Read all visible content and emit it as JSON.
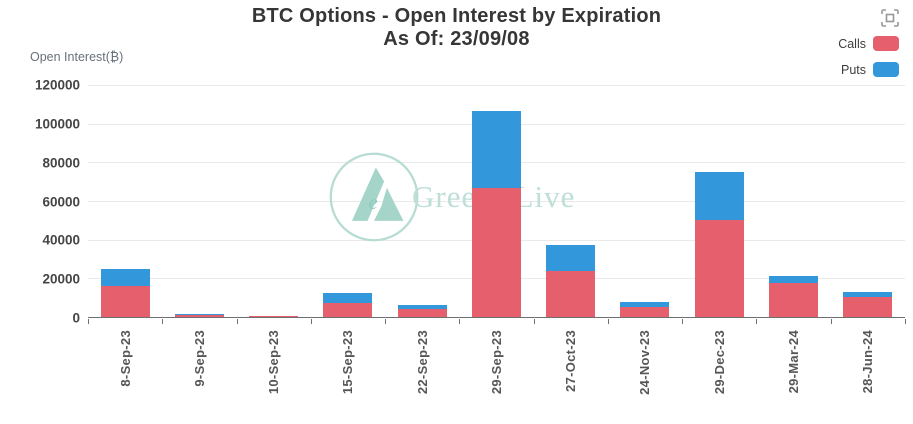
{
  "header": {
    "title_line1": "BTC Options - Open Interest by Expiration",
    "title_line2": "As Of: 23/09/08"
  },
  "y_axis_title": "Open Interest(₿)",
  "legend": [
    {
      "label": "Calls",
      "color": "#e5606c"
    },
    {
      "label": "Puts",
      "color": "#3398db"
    }
  ],
  "watermark": {
    "text": "Greeks.Live"
  },
  "icons": {
    "toolbar": "fullscreen-icon",
    "watermark_logo": "greeks-live-logo-icon"
  },
  "colors": {
    "calls": "#e5606c",
    "puts": "#3398db",
    "axis": "#6f6f6f",
    "gridline": "#e9e9e9",
    "watermark": "#bedfd7"
  },
  "chart_data": {
    "type": "bar",
    "stacked": true,
    "title": "BTC Options - Open Interest by Expiration",
    "subtitle": "As Of: 23/09/08",
    "xlabel": "",
    "ylabel": "Open Interest(₿)",
    "ylim": [
      0,
      120000
    ],
    "ytick_step": 20000,
    "grid": true,
    "legend_position": "top-right",
    "categories": [
      "8-Sep-23",
      "9-Sep-23",
      "10-Sep-23",
      "15-Sep-23",
      "22-Sep-23",
      "29-Sep-23",
      "27-Oct-23",
      "24-Nov-23",
      "29-Dec-23",
      "29-Mar-24",
      "28-Jun-24"
    ],
    "series": [
      {
        "name": "Calls",
        "color": "#e5606c",
        "values": [
          16000,
          1200,
          400,
          7500,
          4000,
          66500,
          24000,
          5200,
          50000,
          17500,
          10500
        ]
      },
      {
        "name": "Puts",
        "color": "#3398db",
        "values": [
          9000,
          300,
          150,
          5000,
          2000,
          40000,
          13000,
          2600,
          25000,
          3700,
          2500
        ]
      }
    ]
  }
}
